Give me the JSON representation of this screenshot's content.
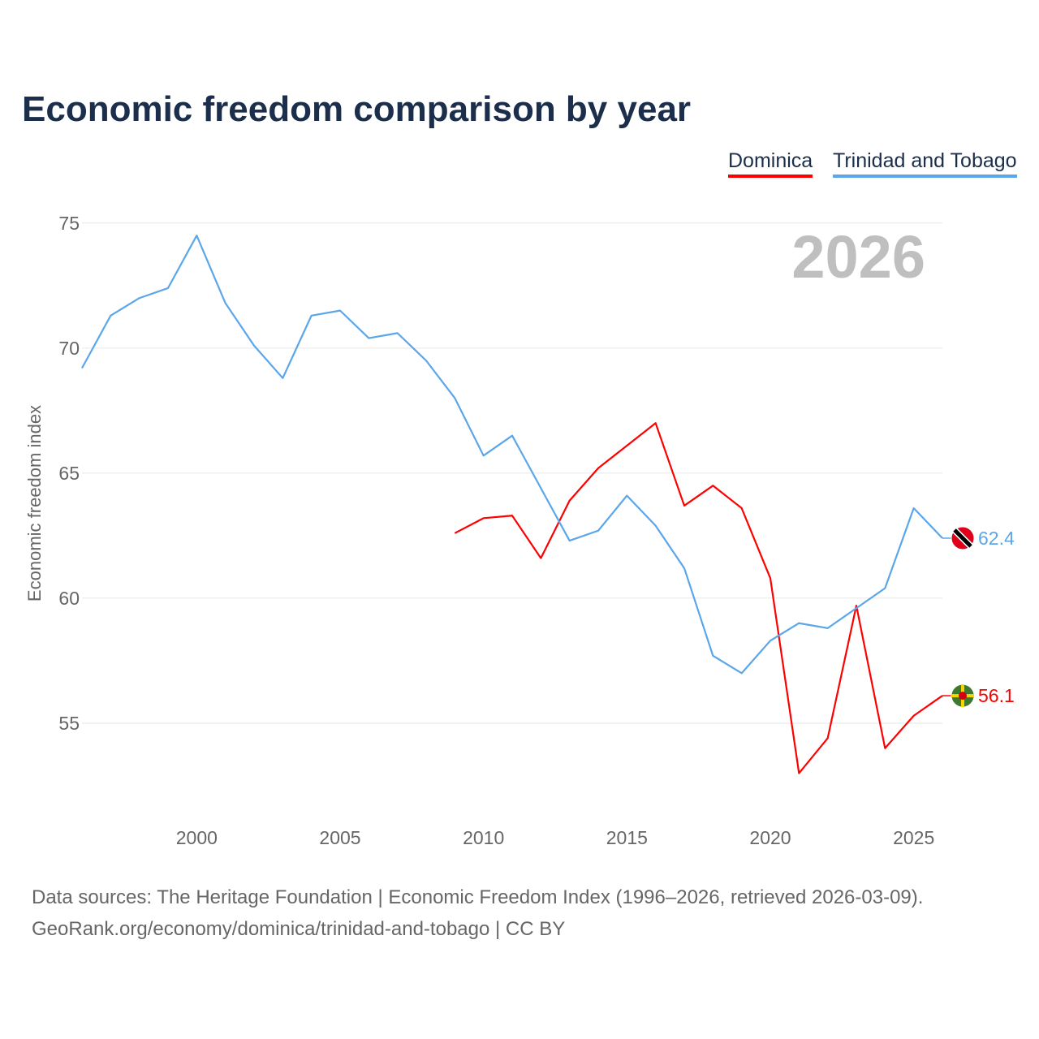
{
  "chart_data": {
    "type": "line",
    "title": "Economic freedom comparison by year",
    "xlabel": "",
    "ylabel": "Economic freedom index",
    "year_watermark": "2026",
    "xlim": [
      1996,
      2026
    ],
    "ylim": [
      50,
      76
    ],
    "xticks": [
      2000,
      2005,
      2010,
      2015,
      2020,
      2025
    ],
    "yticks": [
      55,
      60,
      65,
      70,
      75
    ],
    "grid": true,
    "legend_position": "top-right",
    "series": [
      {
        "name": "Dominica",
        "color": "#ff0000",
        "end_label": "56.1",
        "x": [
          2009,
          2010,
          2011,
          2012,
          2013,
          2014,
          2015,
          2016,
          2017,
          2018,
          2019,
          2020,
          2021,
          2022,
          2023,
          2024,
          2025,
          2026
        ],
        "values": [
          62.6,
          63.2,
          63.3,
          61.6,
          63.9,
          65.2,
          66.1,
          67.0,
          63.7,
          64.5,
          63.6,
          60.8,
          53.0,
          54.4,
          59.7,
          54.0,
          55.3,
          56.1
        ]
      },
      {
        "name": "Trinidad and Tobago",
        "color": "#5ba6ea",
        "end_label": "62.4",
        "x": [
          1996,
          1997,
          1998,
          1999,
          2000,
          2001,
          2002,
          2003,
          2004,
          2005,
          2006,
          2007,
          2008,
          2009,
          2010,
          2011,
          2012,
          2013,
          2014,
          2015,
          2016,
          2017,
          2018,
          2019,
          2020,
          2021,
          2022,
          2023,
          2024,
          2025,
          2026
        ],
        "values": [
          69.2,
          71.3,
          72.0,
          72.4,
          74.5,
          71.8,
          70.1,
          68.8,
          71.3,
          71.5,
          70.4,
          70.6,
          69.5,
          68.0,
          65.7,
          66.5,
          64.4,
          62.3,
          62.7,
          64.1,
          62.9,
          61.2,
          57.7,
          57.0,
          58.3,
          59.0,
          58.8,
          59.6,
          60.4,
          63.6,
          62.4
        ]
      }
    ]
  },
  "footer": {
    "line1": "Data sources: The Heritage Foundation | Economic Freedom Index (1996–2026, retrieved 2026-03-09).",
    "line2": "GeoRank.org/economy/dominica/trinidad-and-tobago | CC BY"
  }
}
